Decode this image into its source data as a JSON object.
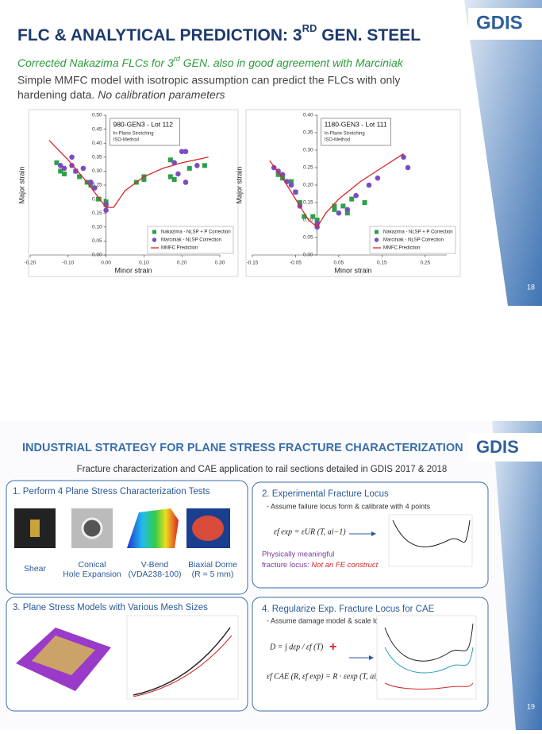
{
  "slide1": {
    "logo": "GDIS",
    "title": [
      "FLC & ANALYTICAL PREDICTION: 3",
      "RD",
      " GEN. STEEL"
    ],
    "subtitle": [
      "Corrected Nakazima FLCs for 3",
      "rd",
      " GEN. also in good agreement with Marciniak"
    ],
    "body": [
      "Simple MMFC model with isotropic assumption can predict the FLCs with only",
      "hardening data.",
      "No calibration parameters"
    ],
    "page_number": "18"
  },
  "chart_data": [
    {
      "type": "scatter",
      "title": "980-GEN3 - Lot 112",
      "annotations": [
        "In-Plane Stretching",
        "ISO-Method"
      ],
      "x_label": "Minor strain",
      "y_label": "Major strain",
      "grid": false,
      "legend": "lower right",
      "xlim": [
        -0.2,
        0.3
      ],
      "ylim": [
        0,
        0.5
      ],
      "xticks": [
        {
          "value": -0.2,
          "label": "-0.20"
        },
        {
          "value": -0.1,
          "label": "-0.10"
        },
        {
          "value": 0,
          "label": "0.00"
        },
        {
          "value": 0.1,
          "label": "0.10"
        },
        {
          "value": 0.2,
          "label": "0.20"
        },
        {
          "value": 0.3,
          "label": "0.30"
        }
      ],
      "yticks": [
        {
          "value": 0,
          "label": "0.00"
        },
        0.05,
        {
          "value": 0.1,
          "label": "0.10"
        },
        0.15,
        {
          "value": 0.2,
          "label": "0.20"
        },
        0.25,
        {
          "value": 0.3,
          "label": "0.30"
        },
        0.35,
        {
          "value": 0.4,
          "label": "0.40"
        },
        0.45,
        {
          "value": 0.5,
          "label": "0.50"
        }
      ],
      "series": [
        {
          "name": "Nakazima - NLSP + P Correction",
          "color": "#2e9e4a",
          "marker": "square",
          "x": [
            -0.13,
            -0.12,
            -0.11,
            -0.08,
            -0.07,
            -0.05,
            -0.04,
            -0.02,
            0.0,
            0.0,
            0.08,
            0.1,
            0.1,
            0.17,
            0.17,
            0.18,
            0.22,
            0.26
          ],
          "values": [
            0.33,
            0.3,
            0.29,
            0.3,
            0.28,
            0.26,
            0.25,
            0.2,
            0.19,
            0.18,
            0.26,
            0.27,
            0.28,
            0.34,
            0.28,
            0.27,
            0.31,
            0.32
          ]
        },
        {
          "name": "Marciniak - NLSP Correction",
          "color": "#7a4cc0",
          "marker": "circle",
          "x": [
            -0.12,
            -0.11,
            -0.09,
            -0.09,
            -0.08,
            -0.06,
            -0.04,
            -0.03,
            0.0,
            0.0,
            0.18,
            0.2,
            0.21,
            0.21,
            0.24,
            0.19
          ],
          "values": [
            0.32,
            0.31,
            0.35,
            0.32,
            0.3,
            0.31,
            0.26,
            0.24,
            0.18,
            0.16,
            0.33,
            0.37,
            0.37,
            0.26,
            0.32,
            0.29
          ]
        },
        {
          "name": "MMFC Prediction",
          "color": "#d62728",
          "marker": "line",
          "x": [
            -0.15,
            -0.1,
            -0.05,
            0.0,
            0.02,
            0.05,
            0.1,
            0.15,
            0.2,
            0.27
          ],
          "values": [
            0.41,
            0.34,
            0.26,
            0.17,
            0.17,
            0.23,
            0.28,
            0.31,
            0.33,
            0.35
          ]
        }
      ]
    },
    {
      "type": "scatter",
      "title": "1180-GEN3 - Lot 111",
      "annotations": [
        "In-Plane Stretching",
        "ISO-Method"
      ],
      "x_label": "Minor strain",
      "y_label": "Major strain",
      "grid": false,
      "legend": "lower right",
      "xlim": [
        -0.15,
        0.3
      ],
      "ylim": [
        0,
        0.4
      ],
      "xticks": [
        -0.15,
        -0.05,
        0.05,
        0.15,
        0.25
      ],
      "yticks": [
        {
          "value": 0,
          "label": "0.00"
        },
        0.05,
        {
          "value": 0.1,
          "label": "0.10"
        },
        0.15,
        {
          "value": 0.2,
          "label": "0.20"
        },
        0.25,
        {
          "value": 0.3,
          "label": "0.30"
        },
        0.35,
        {
          "value": 0.4,
          "label": "0.40"
        }
      ],
      "series": [
        {
          "name": "Nakazima - NLSP + P Correction",
          "color": "#2e9e4a",
          "marker": "square",
          "x": [
            -0.09,
            -0.08,
            -0.06,
            -0.05,
            -0.04,
            -0.03,
            -0.01,
            0.0,
            0.04,
            0.04,
            0.06,
            0.07,
            0.08,
            0.11
          ],
          "values": [
            0.23,
            0.22,
            0.21,
            0.18,
            0.15,
            0.11,
            0.11,
            0.1,
            0.13,
            0.14,
            0.14,
            0.12,
            0.16,
            0.15
          ]
        },
        {
          "name": "Marciniak - NLSP Correction",
          "color": "#7a4cc0",
          "marker": "circle",
          "x": [
            -0.1,
            -0.09,
            -0.08,
            -0.07,
            -0.06,
            -0.05,
            -0.04,
            0.0,
            0.0,
            0.05,
            0.07,
            0.09,
            0.12,
            0.14,
            0.2,
            0.21
          ],
          "values": [
            0.25,
            0.24,
            0.23,
            0.21,
            0.2,
            0.18,
            0.14,
            0.08,
            0.09,
            0.12,
            0.13,
            0.17,
            0.2,
            0.22,
            0.28,
            0.25
          ]
        },
        {
          "name": "MMFC Prediction",
          "color": "#d62728",
          "marker": "line",
          "x": [
            -0.11,
            -0.08,
            -0.05,
            -0.02,
            0.0,
            0.02,
            0.05,
            0.1,
            0.15,
            0.2
          ],
          "values": [
            0.27,
            0.22,
            0.16,
            0.1,
            0.08,
            0.12,
            0.16,
            0.21,
            0.25,
            0.29
          ]
        }
      ]
    }
  ],
  "slide2": {
    "logo": "GDIS",
    "title": "INDUSTRIAL STRATEGY FOR PLANE STRESS FRACTURE CHARACTERIZATION",
    "subtitle": "Fracture characterization and CAE application to rail sections detailed in GDIS 2017 & 2018",
    "panels": [
      {
        "heading": "1. Perform 4 Plane Stress Characterization Tests",
        "tests": [
          [
            "Shear"
          ],
          [
            "Conical",
            "Hole Expansion"
          ],
          [
            "V-Bend",
            "(VDA238-100)"
          ],
          [
            "Biaxial Dome",
            "(R = 5 mm)"
          ]
        ]
      },
      {
        "heading": "2. Experimental Fracture Locus",
        "note": "- Assume failure locus form & calibrate with 4 points",
        "formula": "εf exp = εUR (T, ai−1)",
        "caption": [
          "Physically meaningful",
          "fracture locus: ",
          "Not an FE construct"
        ]
      },
      {
        "heading": "3. Plane Stress Models with Various Mesh Sizes"
      },
      {
        "heading": "4. Regularize Exp. Fracture Locus for CAE",
        "note": "- Assume damage model & scale locus with mesh size, R:",
        "formulas": [
          "D = ∫ dεp / εf (T)",
          "εf CAE (R, εf exp) = R · εexp (T, ai)"
        ]
      }
    ],
    "page_number": "19"
  }
}
